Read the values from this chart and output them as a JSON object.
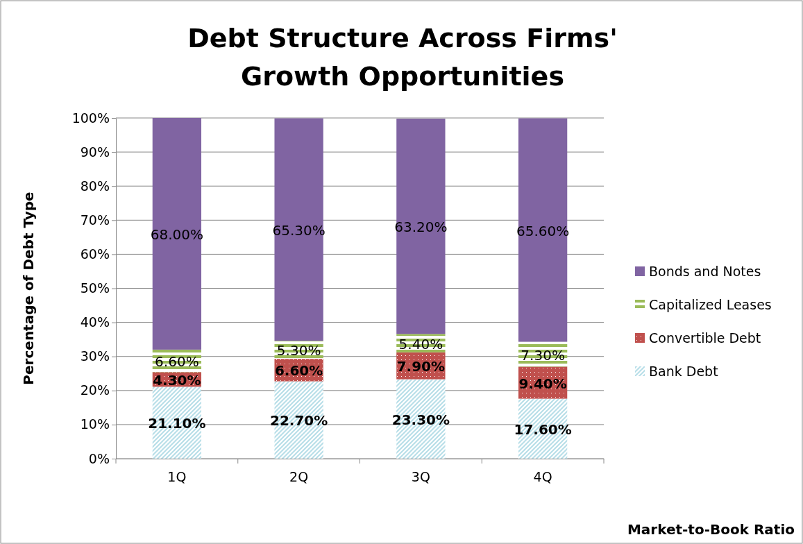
{
  "chart_data": {
    "type": "bar",
    "stacked": true,
    "title": "Debt Structure Across Firms' Growth Opportunities",
    "xlabel": "Market-to-Book Ratio",
    "ylabel": "Percentage of Debt Type",
    "categories": [
      "1Q",
      "2Q",
      "3Q",
      "4Q"
    ],
    "series": [
      {
        "name": "Bank Debt",
        "color": "#b7dee8",
        "values": [
          21.1,
          22.7,
          23.3,
          17.6
        ],
        "value_labels": [
          "21.10%",
          "22.70%",
          "23.30%",
          "17.60%"
        ]
      },
      {
        "name": "Convertible Debt",
        "color": "#c0504d",
        "values": [
          4.3,
          6.6,
          7.9,
          9.4
        ],
        "value_labels": [
          "4.30%",
          "6.60%",
          "7.90%",
          "9.40%"
        ]
      },
      {
        "name": "Capitalized Leases",
        "color": "#9bbb59",
        "values": [
          6.6,
          5.3,
          5.4,
          7.3
        ],
        "value_labels": [
          "6.60%",
          "5.30%",
          "5.40%",
          "7.30%"
        ]
      },
      {
        "name": "Bonds and Notes",
        "color": "#8064a2",
        "values": [
          68.0,
          65.3,
          63.2,
          65.6
        ],
        "value_labels": [
          "68.00%",
          "65.30%",
          "63.20%",
          "65.60%"
        ]
      }
    ],
    "ylim": [
      0,
      100
    ],
    "yticks": [
      {
        "value": 0,
        "label": "0%"
      },
      {
        "value": 10,
        "label": "10%"
      },
      {
        "value": 20,
        "label": "20%"
      },
      {
        "value": 30,
        "label": "30%"
      },
      {
        "value": 40,
        "label": "40%"
      },
      {
        "value": 50,
        "label": "50%"
      },
      {
        "value": 60,
        "label": "60%"
      },
      {
        "value": 70,
        "label": "70%"
      },
      {
        "value": 80,
        "label": "80%"
      },
      {
        "value": 90,
        "label": "90%"
      },
      {
        "value": 100,
        "label": "100%"
      }
    ],
    "grid": "y",
    "legend": "right"
  }
}
